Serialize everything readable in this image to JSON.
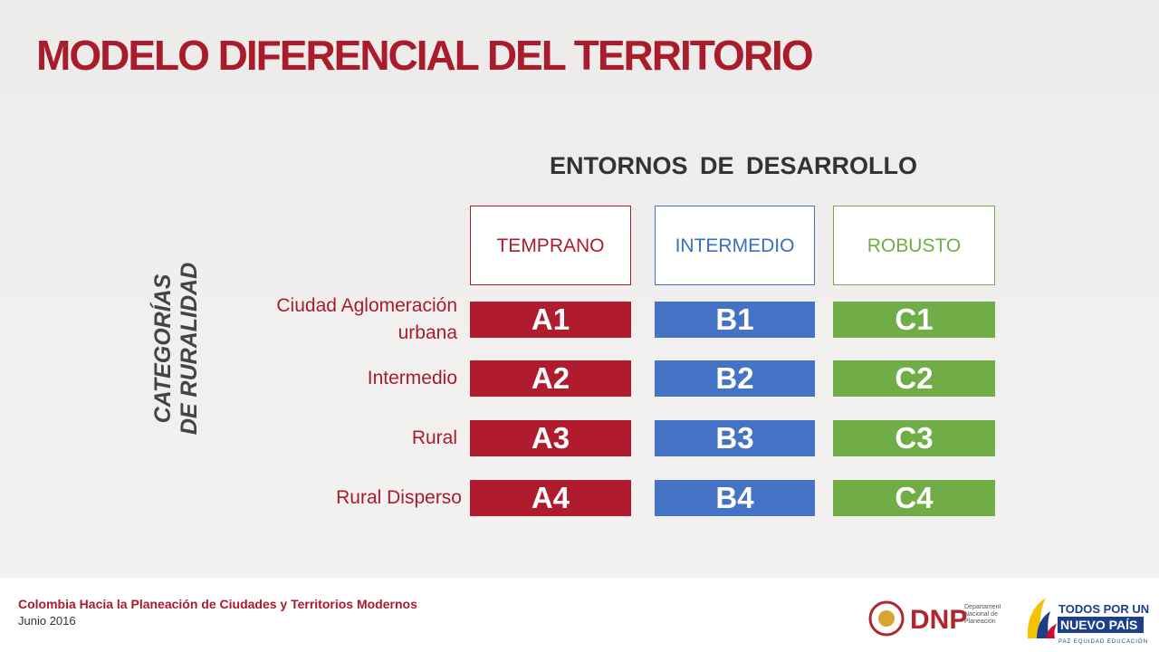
{
  "header": {
    "title": "MODELO DIFERENCIAL DEL TERRITORIO"
  },
  "subtitle": "ENTORNOS DE DESARROLLO",
  "side_label": "CATEGORÍAS DE RURALIDAD",
  "columns": [
    "TEMPRANO",
    "INTERMEDIO",
    "ROBUSTO"
  ],
  "rows": [
    {
      "label": "Ciudad Aglomeración urbana",
      "cells": [
        "A1",
        "B1",
        "C1"
      ]
    },
    {
      "label": "Intermedio",
      "cells": [
        "A2",
        "B2",
        "C2"
      ]
    },
    {
      "label": "Rural",
      "cells": [
        "A3",
        "B3",
        "C3"
      ]
    },
    {
      "label": "Rural Disperso",
      "cells": [
        "A4",
        "B4",
        "C4"
      ]
    }
  ],
  "footer": {
    "title": "Colombia Hacia la Planeación de Ciudades y Territorios Modernos",
    "date": "Junio 2016"
  },
  "logos": {
    "dnp": "DNP",
    "dnp_name": "Departamento Nacional de Planeación",
    "slogan_1": "TODOS POR UN",
    "slogan_2": "NUEVO PAÍS",
    "slogan_3": "PAZ EQUIDAD EDUCACIÓN"
  }
}
